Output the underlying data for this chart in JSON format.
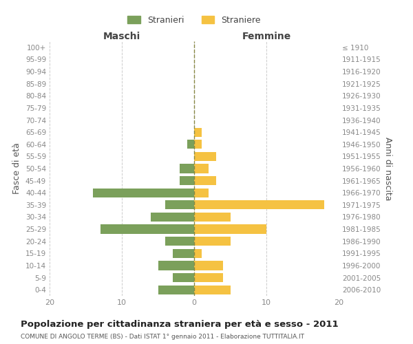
{
  "age_groups": [
    "0-4",
    "5-9",
    "10-14",
    "15-19",
    "20-24",
    "25-29",
    "30-34",
    "35-39",
    "40-44",
    "45-49",
    "50-54",
    "55-59",
    "60-64",
    "65-69",
    "70-74",
    "75-79",
    "80-84",
    "85-89",
    "90-94",
    "95-99",
    "100+"
  ],
  "birth_years": [
    "2006-2010",
    "2001-2005",
    "1996-2000",
    "1991-1995",
    "1986-1990",
    "1981-1985",
    "1976-1980",
    "1971-1975",
    "1966-1970",
    "1961-1965",
    "1956-1960",
    "1951-1955",
    "1946-1950",
    "1941-1945",
    "1936-1940",
    "1931-1935",
    "1926-1930",
    "1921-1925",
    "1916-1920",
    "1911-1915",
    "≤ 1910"
  ],
  "males": [
    5,
    3,
    5,
    3,
    4,
    13,
    6,
    4,
    14,
    2,
    2,
    0,
    1,
    0,
    0,
    0,
    0,
    0,
    0,
    0,
    0
  ],
  "females": [
    5,
    4,
    4,
    1,
    5,
    10,
    5,
    18,
    2,
    3,
    2,
    3,
    1,
    1,
    0,
    0,
    0,
    0,
    0,
    0,
    0
  ],
  "male_color": "#7BA05B",
  "female_color": "#F5C242",
  "background_color": "#ffffff",
  "grid_color": "#cccccc",
  "title": "Popolazione per cittadinanza straniera per età e sesso - 2011",
  "subtitle": "COMUNE DI ANGOLO TERME (BS) - Dati ISTAT 1° gennaio 2011 - Elaborazione TUTTITALIA.IT",
  "ylabel_left": "Fasce di età",
  "ylabel_right": "Anni di nascita",
  "xlabel_left": "Maschi",
  "xlabel_right": "Femmine",
  "legend_male": "Stranieri",
  "legend_female": "Straniere",
  "xlim": 20,
  "tick_color": "#888888",
  "axis_label_color": "#555555"
}
